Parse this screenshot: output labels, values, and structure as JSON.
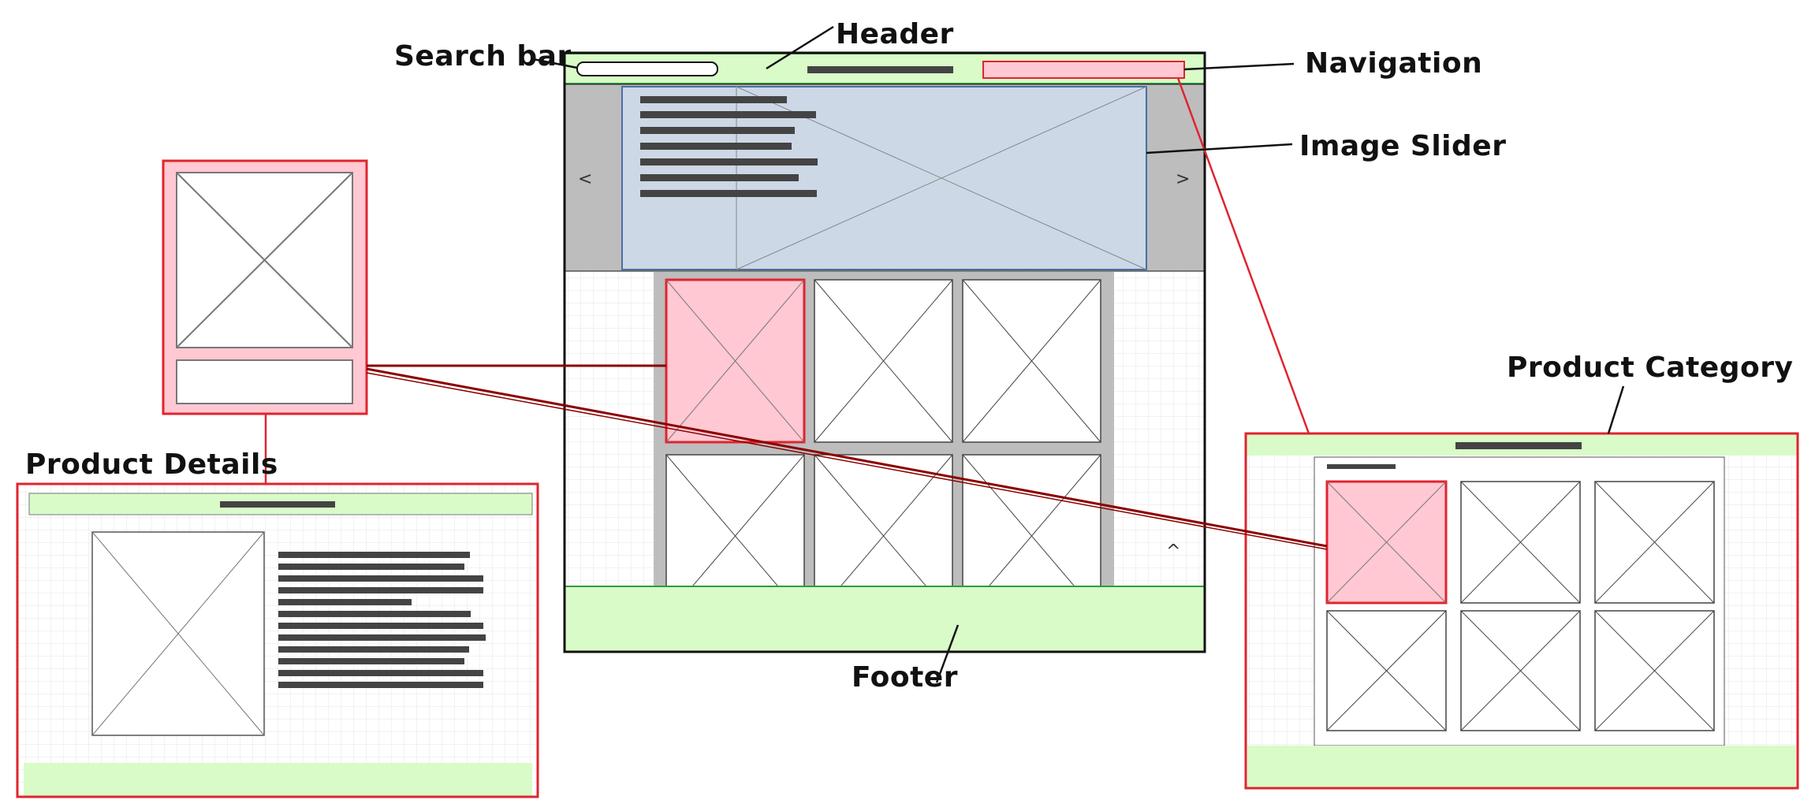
{
  "labels": {
    "search_bar": "Search bar",
    "header": "Header",
    "navigation": "Navigation",
    "image_slider": "Image Slider",
    "product_category": "Product Category",
    "product_details": "Product Details",
    "footer": "Footer"
  },
  "slider": {
    "prev_glyph": "<",
    "next_glyph": ">"
  },
  "scroll_top_glyph": "^",
  "colors": {
    "highlight_pink": "#ffc8d2",
    "highlight_red": "#e0242e",
    "connector_dark_red": "#8b0000",
    "green_band": "#d9fbc8",
    "green_border": "#2e9e3a",
    "slider_blue": "#cdd8e6",
    "slider_side_gray": "#bdbdbd",
    "text_bar": "#444444",
    "grid_line": "#e6e6e6"
  }
}
